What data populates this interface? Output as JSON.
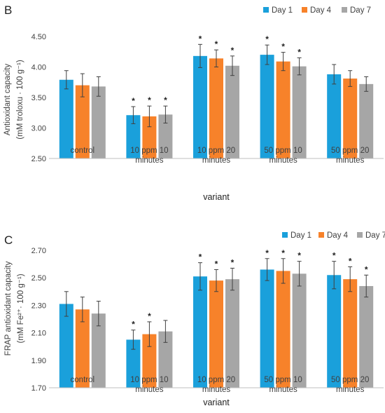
{
  "colors": {
    "day1": "#1aa0db",
    "day4": "#f7822a",
    "day7": "#a6a6a6",
    "axis": "#bfbfbf",
    "err": "#404040"
  },
  "chart_data": [
    {
      "panel": "B",
      "type": "bar",
      "categories": [
        [
          "control"
        ],
        [
          "10 ppm 10",
          "minutes"
        ],
        [
          "10 ppm 20",
          "minutes"
        ],
        [
          "50 ppm 10",
          "minutes"
        ],
        [
          "50 ppm 20",
          "minutes"
        ]
      ],
      "xlabel": "variant",
      "ylabel_lines": [
        "Antioxidant capacity",
        "(mM troloxu · 100 g⁻¹)"
      ],
      "ylim": [
        2.5,
        4.5
      ],
      "yticks": [
        2.5,
        3.0,
        3.5,
        4.0,
        4.5
      ],
      "tick_labels": [
        "2.50",
        "3.00",
        "3.50",
        "4.00",
        "4.50"
      ],
      "legend": "top-right",
      "grid": false,
      "series": [
        {
          "name": "Day 1",
          "color": "#1aa0db",
          "values": [
            3.79,
            3.21,
            4.18,
            4.2,
            3.88
          ],
          "errors": [
            0.15,
            0.14,
            0.19,
            0.16,
            0.16
          ],
          "significant": [
            false,
            true,
            true,
            true,
            false
          ]
        },
        {
          "name": "Day 4",
          "color": "#f7822a",
          "values": [
            3.7,
            3.19,
            4.14,
            4.09,
            3.81
          ],
          "errors": [
            0.19,
            0.17,
            0.14,
            0.15,
            0.13
          ],
          "significant": [
            false,
            true,
            true,
            true,
            false
          ]
        },
        {
          "name": "Day 7",
          "color": "#a6a6a6",
          "values": [
            3.68,
            3.22,
            4.02,
            4.01,
            3.72
          ],
          "errors": [
            0.16,
            0.14,
            0.16,
            0.14,
            0.12
          ],
          "significant": [
            false,
            true,
            true,
            true,
            false
          ]
        }
      ]
    },
    {
      "panel": "C",
      "type": "bar",
      "categories": [
        [
          "control"
        ],
        [
          "10 ppm 10",
          "minutes"
        ],
        [
          "10 ppm 20",
          "minutes"
        ],
        [
          "50 ppm 10",
          "minutes"
        ],
        [
          "50 ppm 20",
          "minutes"
        ]
      ],
      "xlabel": "variant",
      "ylabel_lines": [
        "FRAP antioxidant capacity",
        "(mM Fe²⁺· 100 g⁻¹)"
      ],
      "ylim": [
        1.7,
        2.7
      ],
      "yticks": [
        1.7,
        1.9,
        2.1,
        2.3,
        2.5,
        2.7
      ],
      "tick_labels": [
        "1.70",
        "1.90",
        "2.10",
        "2.30",
        "2.50",
        "2.70"
      ],
      "legend": "top-right",
      "grid": false,
      "series": [
        {
          "name": "Day 1",
          "color": "#1aa0db",
          "values": [
            2.31,
            2.05,
            2.51,
            2.56,
            2.52
          ],
          "errors": [
            0.09,
            0.07,
            0.1,
            0.08,
            0.1
          ],
          "significant": [
            false,
            true,
            true,
            true,
            true
          ]
        },
        {
          "name": "Day 4",
          "color": "#f7822a",
          "values": [
            2.27,
            2.09,
            2.48,
            2.55,
            2.49
          ],
          "errors": [
            0.09,
            0.09,
            0.08,
            0.09,
            0.09
          ],
          "significant": [
            false,
            true,
            true,
            true,
            true
          ]
        },
        {
          "name": "Day 7",
          "color": "#a6a6a6",
          "values": [
            2.24,
            2.11,
            2.49,
            2.53,
            2.44
          ],
          "errors": [
            0.09,
            0.08,
            0.08,
            0.09,
            0.08
          ],
          "significant": [
            false,
            false,
            true,
            true,
            true
          ]
        }
      ]
    }
  ],
  "significance_marker": "*"
}
